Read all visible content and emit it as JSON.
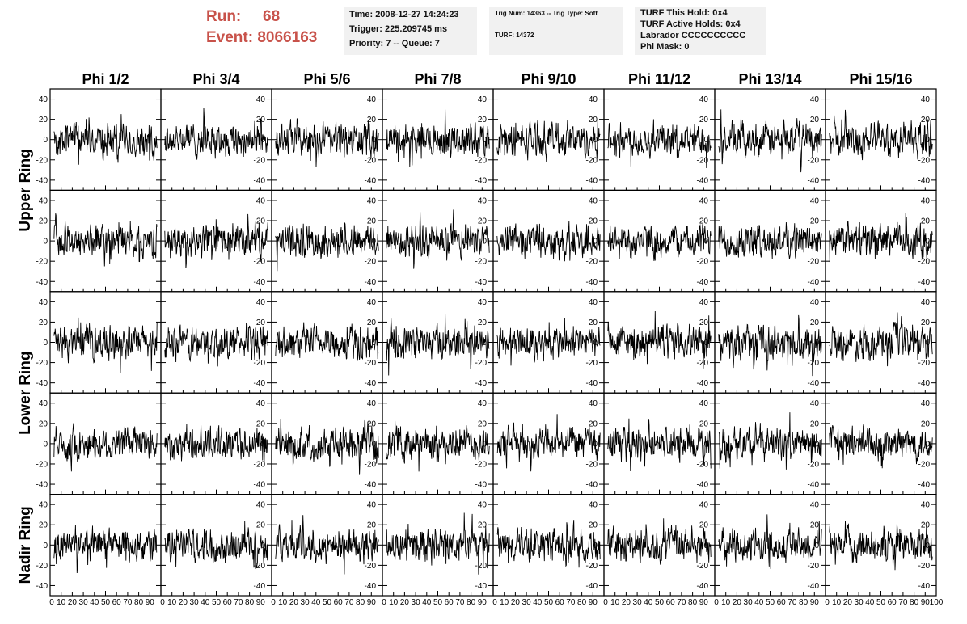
{
  "header": {
    "run_label": "Run:",
    "run_value": "68",
    "event_label": "Event:",
    "event_value": "8066163",
    "accent_color": "#c8524a"
  },
  "info_time": {
    "time": "Time: 2008-12-27 14:24:23",
    "trigger": "Trigger: 225.209745 ms",
    "priority": "Priority: 7 -- Queue: 7"
  },
  "info_trig": {
    "trig": "Trig Num: 14363 -- Trig Type: Soft",
    "turf": "TURF: 14372"
  },
  "info_turf": {
    "this_hold": "TURF This Hold: 0x4",
    "active_holds": "TURF Active Holds: 0x4",
    "labrador": "Labrador CCCCCCCCCC",
    "phi_mask": "Phi Mask: 0"
  },
  "chart_data": {
    "type": "line",
    "columns": [
      "Phi 1/2",
      "Phi 3/4",
      "Phi 5/6",
      "Phi 7/8",
      "Phi 9/10",
      "Phi 11/12",
      "Phi 13/14",
      "Phi 15/16"
    ],
    "rows": [
      "Upper Ring",
      "Lower Ring",
      "Nadir Ring"
    ],
    "ylim": [
      -50,
      50
    ],
    "yticks": [
      40,
      20,
      0,
      -20,
      -40
    ],
    "xlim": [
      0,
      100
    ],
    "xtick_labels": [
      "0",
      "10",
      "20",
      "30",
      "40",
      "50",
      "60",
      "70",
      "80",
      "90",
      "100"
    ],
    "samples_per_trace": 260,
    "trace_amplitude": 22,
    "trace_color": "#000000",
    "grid": false
  }
}
